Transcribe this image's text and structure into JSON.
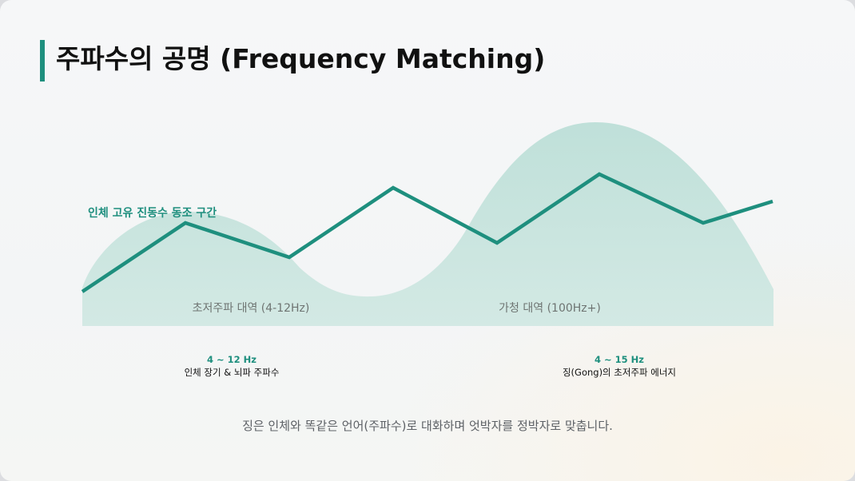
{
  "title": "주파수의 공명 (Frequency Matching)",
  "colors": {
    "accent": "#1e8f7e",
    "area_fill": "#c5e2dc",
    "background": "#f4f6f7"
  },
  "diagram": {
    "zone_label": "인체 고유 진동수 동조 구간",
    "bands": [
      {
        "label": "초저주파 대역 (4-12Hz)"
      },
      {
        "label": "가청 대역 (100Hz+)"
      }
    ]
  },
  "captions": [
    {
      "freq": "4 ~ 12 Hz",
      "desc": "인체 장기 & 뇌파 주파수"
    },
    {
      "freq": "4 ~ 15 Hz",
      "desc": "징(Gong)의 초저주파 에너지"
    }
  ],
  "footer": "징은 인체와 똑같은 언어(주파수)로 대화하며 엇박자를 정박자로 맞춥니다."
}
